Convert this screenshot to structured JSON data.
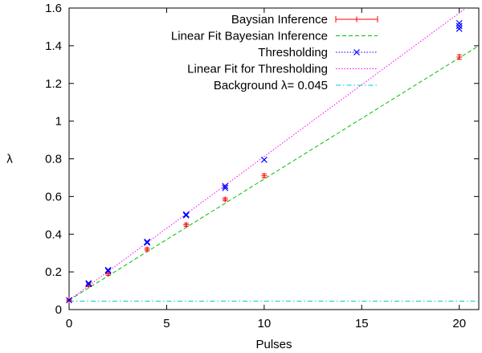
{
  "chart_data": {
    "type": "scatter",
    "xlabel": "Pulses",
    "ylabel": "λ",
    "xlim": [
      0,
      21
    ],
    "ylim": [
      0,
      1.6
    ],
    "xticks": [
      0,
      5,
      10,
      15,
      20
    ],
    "yticks": [
      0,
      0.2,
      0.4,
      0.6,
      0.8,
      1,
      1.2,
      1.4,
      1.6
    ],
    "grid": false,
    "legend_position": "top-right",
    "series": [
      {
        "name": "Baysian Inference",
        "kind": "points-errorbars",
        "marker": "plus",
        "color": "#ff0000",
        "x": [
          0,
          1,
          2,
          4,
          6,
          8,
          10,
          20
        ],
        "y": [
          0.05,
          0.13,
          0.19,
          0.32,
          0.45,
          0.585,
          0.71,
          1.34
        ],
        "err": [
          0.005,
          0.008,
          0.008,
          0.008,
          0.008,
          0.008,
          0.01,
          0.012
        ]
      },
      {
        "name": "Linear Fit Bayesian Inference",
        "kind": "line",
        "dash": "dashed",
        "color": "#00c000",
        "x": [
          0,
          21
        ],
        "y": [
          0.05,
          1.4
        ]
      },
      {
        "name": "Thresholding",
        "kind": "points",
        "marker": "cross",
        "color": "#0000ff",
        "x": [
          0,
          1,
          1,
          2,
          2,
          4,
          4,
          6,
          6,
          8,
          8,
          10,
          20,
          20,
          20
        ],
        "y": [
          0.05,
          0.135,
          0.14,
          0.205,
          0.21,
          0.355,
          0.36,
          0.5,
          0.505,
          0.645,
          0.655,
          0.795,
          1.49,
          1.505,
          1.52
        ]
      },
      {
        "name": "Linear Fit for Thresholding",
        "kind": "line",
        "dash": "dotted",
        "color": "#ff00ff",
        "x": [
          0,
          21
        ],
        "y": [
          0.05,
          1.65
        ]
      },
      {
        "name": "Background λ= 0.045",
        "kind": "line",
        "dash": "dash-dot",
        "color": "#00cccc",
        "x": [
          0,
          21
        ],
        "y": [
          0.045,
          0.045
        ]
      }
    ]
  }
}
